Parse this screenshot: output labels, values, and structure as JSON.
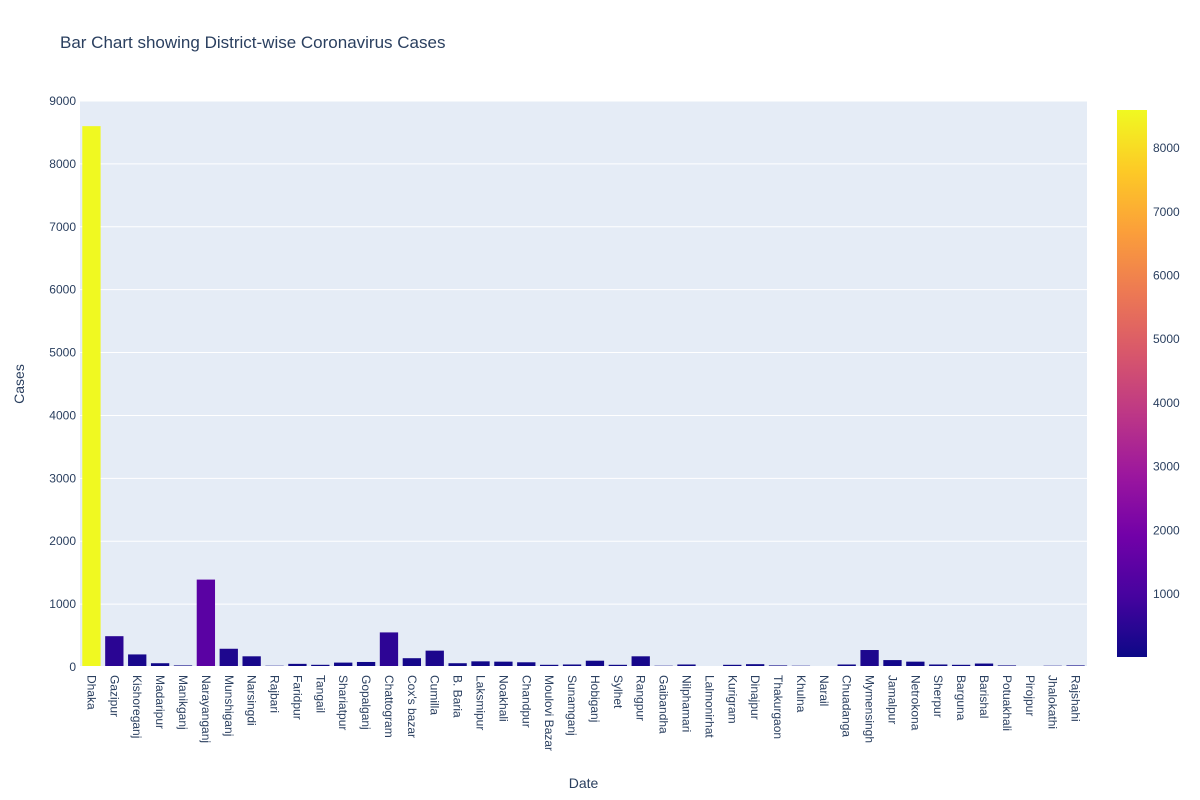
{
  "chart_data": {
    "type": "bar",
    "title": "Bar Chart showing District-wise Coronavirus Cases",
    "xlabel": "Date",
    "ylabel": "Cases",
    "ylim": [
      0,
      9000
    ],
    "yticks": [
      0,
      1000,
      2000,
      3000,
      4000,
      5000,
      6000,
      7000,
      8000,
      9000
    ],
    "grid": true,
    "categories": [
      "Dhaka",
      "Gazipur",
      "Kishoreganj",
      "Madaripur",
      "Manikganj",
      "Narayanganj",
      "Munshiganj",
      "Narsingdi",
      "Rajbari",
      "Faridpur",
      "Tangail",
      "Shariatpur",
      "Gopalganj",
      "Chattogram",
      "Cox's bazar",
      "Cumilla",
      "B. Baria",
      "Laksmipur",
      "Noakhali",
      "Chandpur",
      "Moulovi Bazar",
      "Sunamganj",
      "Hobiganj",
      "Sylhet",
      "Rangpur",
      "Gaibandha",
      "Nilphamari",
      "Lalmonirhat",
      "Kurigram",
      "Dinajpur",
      "Thakurgaon",
      "Khulna",
      "Narail",
      "Chuadanga",
      "Mymensingh",
      "Jamalpur",
      "Netrokona",
      "Sherpur",
      "Barguna",
      "Barishal",
      "Potuakhali",
      "Pirojpur",
      "Jhalokathi",
      "Rajshahi"
    ],
    "values": [
      8600,
      490,
      200,
      60,
      25,
      1390,
      290,
      170,
      20,
      50,
      35,
      70,
      80,
      550,
      140,
      260,
      60,
      90,
      85,
      75,
      35,
      40,
      100,
      35,
      170,
      20,
      40,
      15,
      35,
      45,
      25,
      20,
      15,
      40,
      270,
      110,
      85,
      40,
      35,
      55,
      25,
      10,
      20,
      25
    ],
    "colorbar": {
      "ticks": [
        1000,
        2000,
        3000,
        4000,
        5000,
        6000,
        7000,
        8000
      ],
      "min": 10,
      "max": 8600
    },
    "colorscale": [
      "#0d0887",
      "#46039f",
      "#7201a8",
      "#9c179e",
      "#bd3786",
      "#d8576b",
      "#ed7953",
      "#fb9f3a",
      "#fdca26",
      "#f0f921"
    ]
  }
}
